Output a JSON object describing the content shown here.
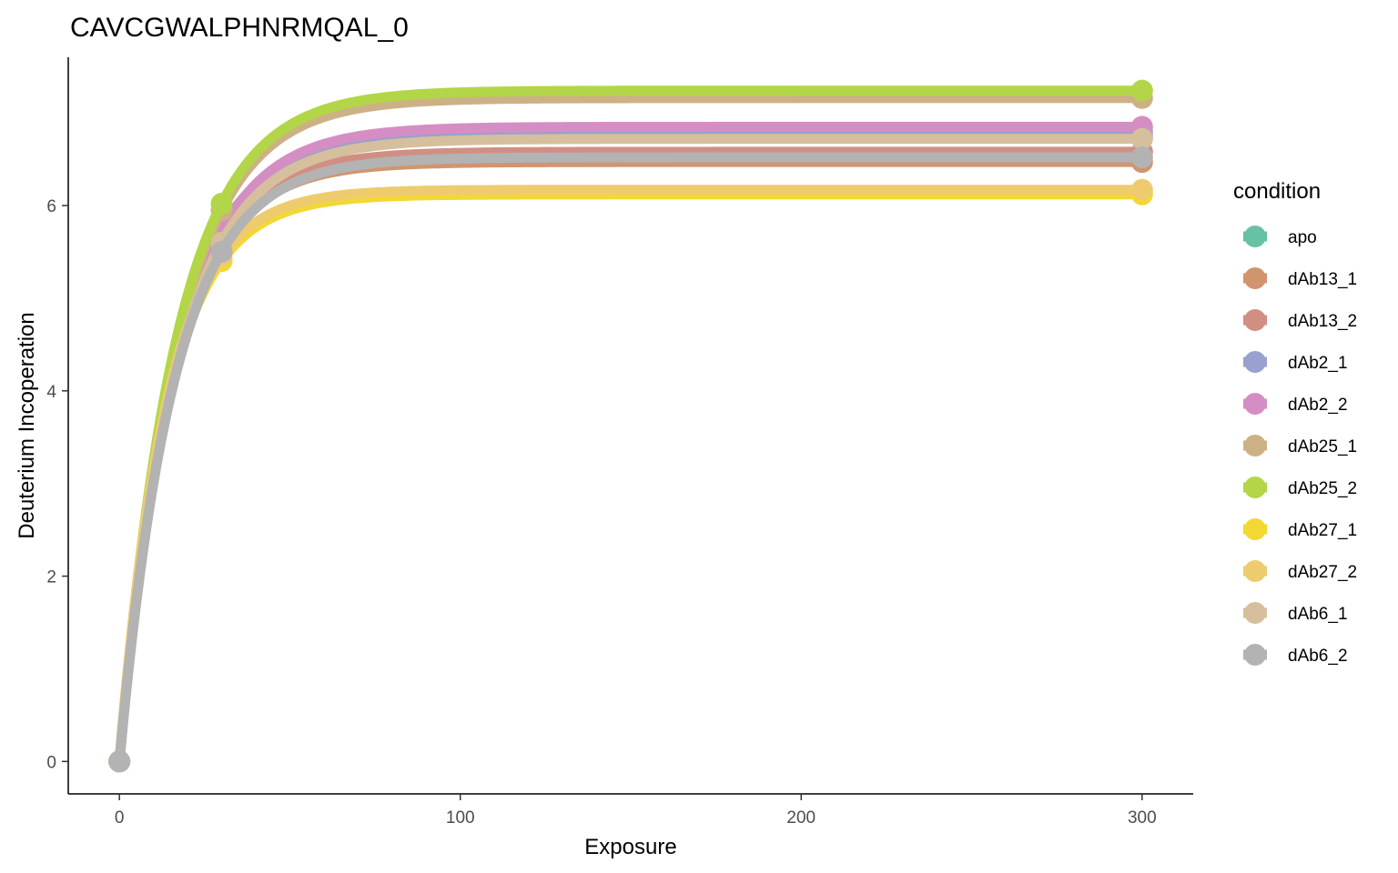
{
  "chart_data": {
    "type": "line",
    "title": "CAVCGWALPHNRMQAL_0",
    "xlabel": "Exposure",
    "ylabel": "Deuterium Incoperation",
    "xlim": [
      -15,
      315
    ],
    "ylim": [
      -0.35,
      7.6
    ],
    "x_ticks": [
      0,
      100,
      200,
      300
    ],
    "y_ticks": [
      0,
      2,
      4,
      6
    ],
    "grid": false,
    "legend_title": "condition",
    "legend_position": "right",
    "x": [
      0,
      30,
      300
    ],
    "series": [
      {
        "name": "apo",
        "color": "#66C2A5",
        "values": [
          0,
          5.75,
          6.75
        ]
      },
      {
        "name": "dAb13_1",
        "color": "#D0956F",
        "values": [
          0,
          5.55,
          6.47
        ]
      },
      {
        "name": "dAb13_2",
        "color": "#D18F84",
        "values": [
          0,
          5.6,
          6.58
        ]
      },
      {
        "name": "dAb2_1",
        "color": "#9AA0CF",
        "values": [
          0,
          5.7,
          6.8
        ]
      },
      {
        "name": "dAb2_2",
        "color": "#D58EC4",
        "values": [
          0,
          5.72,
          6.85
        ]
      },
      {
        "name": "dAb25_1",
        "color": "#CDB186",
        "values": [
          0,
          5.95,
          7.16
        ]
      },
      {
        "name": "dAb25_2",
        "color": "#B2D647",
        "values": [
          0,
          6.02,
          7.24
        ]
      },
      {
        "name": "dAb27_1",
        "color": "#F3D833",
        "values": [
          0,
          5.4,
          6.12
        ]
      },
      {
        "name": "dAb27_2",
        "color": "#EECC6E",
        "values": [
          0,
          5.45,
          6.17
        ]
      },
      {
        "name": "dAb6_1",
        "color": "#D6BF9C",
        "values": [
          0,
          5.6,
          6.72
        ]
      },
      {
        "name": "dAb6_2",
        "color": "#B3B3B3",
        "values": [
          0,
          5.5,
          6.52
        ]
      }
    ]
  }
}
